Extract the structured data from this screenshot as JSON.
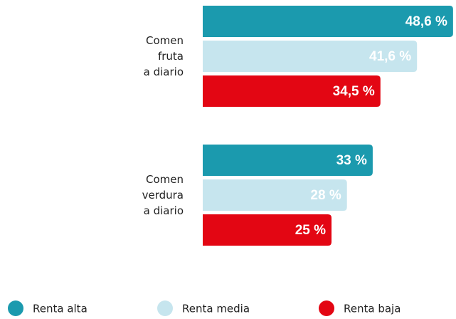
{
  "chart_data": {
    "type": "hbar",
    "categories": [
      "Comen\nfruta\na diario",
      "Comen\nverdura\na diario"
    ],
    "series": [
      {
        "name": "Renta alta",
        "color": "#1b9aae",
        "values": [
          48.6,
          33
        ],
        "value_labels": [
          "48,6 %",
          "33 %"
        ]
      },
      {
        "name": "Renta media",
        "color": "#c6e5ee",
        "values": [
          41.6,
          28
        ],
        "value_labels": [
          "41,6 %",
          "28 %"
        ]
      },
      {
        "name": "Renta baja",
        "color": "#e30613",
        "values": [
          34.5,
          25
        ],
        "value_labels": [
          "34,5 %",
          "25 %"
        ]
      }
    ],
    "legend": "bottom"
  }
}
